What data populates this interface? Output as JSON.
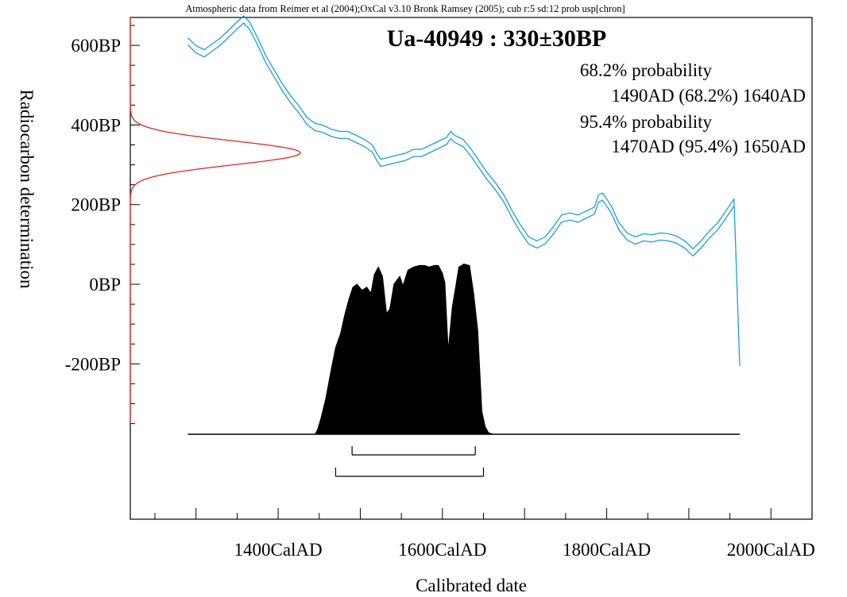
{
  "chart_data": {
    "type": "area",
    "header": "Atmospheric data from Reimer et al (2004);OxCal v3.10 Bronk Ramsey (2005); cub r:5 sd:12 prob usp[chron]",
    "title": "Ua-40949 : 330±30BP",
    "xlabel": "Calibrated date",
    "ylabel": "Radiocarbon determination",
    "xlim": [
      1220,
      2050
    ],
    "ylim": [
      -590,
      670
    ],
    "x_ticks": [
      {
        "value": 1400,
        "label": "1400CalAD"
      },
      {
        "value": 1600,
        "label": "1600CalAD"
      },
      {
        "value": 1800,
        "label": "1800CalAD"
      },
      {
        "value": 2000,
        "label": "2000CalAD"
      }
    ],
    "y_ticks": [
      {
        "value": 600,
        "label": "600BP"
      },
      {
        "value": 400,
        "label": "400BP"
      },
      {
        "value": 200,
        "label": "200BP"
      },
      {
        "value": 0,
        "label": "0BP"
      },
      {
        "value": -200,
        "label": "-200BP"
      }
    ],
    "annotations": [
      "68.2% probability",
      "1490AD (68.2%) 1640AD",
      "95.4% probability",
      "1470AD (95.4%) 1650AD"
    ],
    "calibration_curve": {
      "x": [
        1290,
        1300,
        1310,
        1320,
        1330,
        1340,
        1350,
        1358,
        1365,
        1375,
        1385,
        1395,
        1405,
        1415,
        1425,
        1435,
        1445,
        1455,
        1465,
        1475,
        1485,
        1495,
        1505,
        1515,
        1520,
        1525,
        1535,
        1545,
        1555,
        1565,
        1575,
        1585,
        1595,
        1605,
        1610,
        1615,
        1625,
        1635,
        1645,
        1655,
        1665,
        1675,
        1685,
        1695,
        1705,
        1715,
        1725,
        1735,
        1745,
        1755,
        1765,
        1775,
        1785,
        1790,
        1795,
        1805,
        1815,
        1825,
        1835,
        1845,
        1855,
        1865,
        1875,
        1885,
        1895,
        1905,
        1915,
        1925,
        1935,
        1945,
        1950,
        1955
      ],
      "y": [
        610,
        590,
        580,
        595,
        610,
        630,
        650,
        665,
        650,
        610,
        565,
        530,
        495,
        465,
        440,
        410,
        395,
        390,
        380,
        375,
        375,
        365,
        355,
        340,
        320,
        305,
        310,
        315,
        320,
        330,
        330,
        340,
        350,
        360,
        375,
        365,
        355,
        330,
        300,
        270,
        245,
        215,
        175,
        140,
        110,
        100,
        110,
        135,
        165,
        170,
        165,
        175,
        185,
        215,
        220,
        190,
        145,
        120,
        110,
        118,
        115,
        120,
        118,
        112,
        100,
        80,
        100,
        125,
        145,
        175,
        190,
        205
      ],
      "half_width": 9,
      "end_point": [
        1962,
        -205
      ],
      "color": "#1a9ed8"
    },
    "bp_distribution": {
      "mean": 330,
      "sd": 30,
      "color": "#e8201c"
    },
    "calibrated_distribution": {
      "x": [
        1445,
        1448,
        1452,
        1458,
        1464,
        1470,
        1476,
        1481,
        1486,
        1491,
        1496,
        1502,
        1508,
        1513,
        1517,
        1522,
        1527,
        1532,
        1536,
        1541,
        1548,
        1552,
        1558,
        1565,
        1572,
        1578,
        1584,
        1590,
        1595,
        1600,
        1603,
        1607,
        1612,
        1616,
        1620,
        1626,
        1633,
        1638,
        1643,
        1648,
        1652,
        1656,
        1662
      ],
      "density": [
        0,
        0.03,
        0.1,
        0.23,
        0.4,
        0.56,
        0.65,
        0.77,
        0.87,
        0.95,
        0.97,
        0.93,
        0.95,
        0.91,
        1.03,
        1.08,
        1.02,
        0.78,
        0.81,
        0.97,
        1.02,
        0.96,
        1.06,
        1.08,
        1.09,
        1.09,
        1.08,
        1.09,
        1.09,
        1.04,
        0.98,
        0.54,
        0.82,
        0.95,
        1.08,
        1.1,
        1.09,
        0.91,
        0.67,
        0.15,
        0.05,
        0.01,
        0
      ],
      "color": "#000000"
    },
    "ranges": [
      {
        "label": "68.2%",
        "from": 1490,
        "to": 1640
      },
      {
        "label": "95.4%",
        "from": 1470,
        "to": 1650
      }
    ]
  }
}
